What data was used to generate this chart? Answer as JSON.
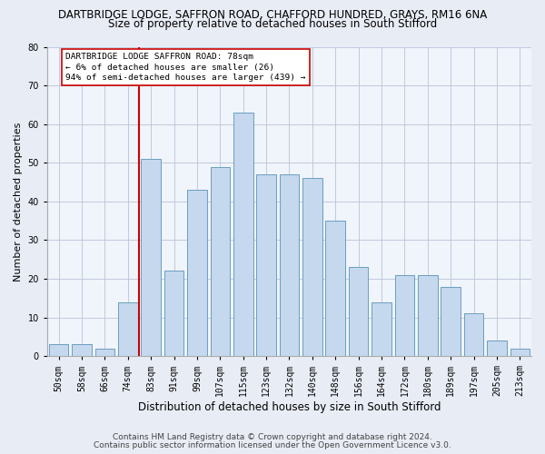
{
  "title": "DARTBRIDGE LODGE, SAFFRON ROAD, CHAFFORD HUNDRED, GRAYS, RM16 6NA",
  "subtitle": "Size of property relative to detached houses in South Stifford",
  "xlabel": "Distribution of detached houses by size in South Stifford",
  "ylabel": "Number of detached properties",
  "categories": [
    "50sqm",
    "58sqm",
    "66sqm",
    "74sqm",
    "83sqm",
    "91sqm",
    "99sqm",
    "107sqm",
    "115sqm",
    "123sqm",
    "132sqm",
    "140sqm",
    "148sqm",
    "156sqm",
    "164sqm",
    "172sqm",
    "180sqm",
    "189sqm",
    "197sqm",
    "205sqm",
    "213sqm"
  ],
  "values": [
    3,
    3,
    2,
    14,
    51,
    22,
    43,
    49,
    63,
    47,
    47,
    46,
    35,
    23,
    14,
    21,
    21,
    18,
    11,
    4,
    2
  ],
  "bar_color": "#c5d8ed",
  "bar_edge_color": "#6a9fc0",
  "vline_color": "#cc0000",
  "vline_pos": 3.5,
  "annotation_text": "DARTBRIDGE LODGE SAFFRON ROAD: 78sqm\n← 6% of detached houses are smaller (26)\n94% of semi-detached houses are larger (439) →",
  "annotation_box_color": "#ffffff",
  "annotation_box_edge": "#cc0000",
  "ylim": [
    0,
    80
  ],
  "yticks": [
    0,
    10,
    20,
    30,
    40,
    50,
    60,
    70,
    80
  ],
  "footer1": "Contains HM Land Registry data © Crown copyright and database right 2024.",
  "footer2": "Contains public sector information licensed under the Open Government Licence v3.0.",
  "bg_color": "#e8ecf5",
  "plot_bg_color": "#f0f4fb",
  "title_fontsize": 8.5,
  "subtitle_fontsize": 8.5,
  "xlabel_fontsize": 8.5,
  "ylabel_fontsize": 8,
  "tick_fontsize": 7,
  "footer_fontsize": 6.5
}
